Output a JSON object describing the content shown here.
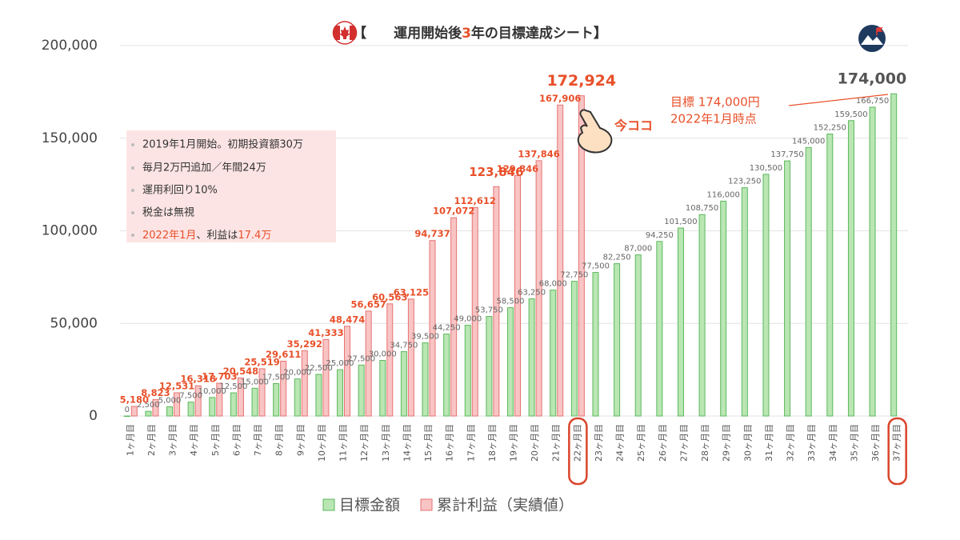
{
  "chart_data": {
    "type": "bar",
    "title": [
      "【",
      "運用開始後",
      "3",
      "年の目標達成シート】"
    ],
    "categories": [
      "1ヶ月目",
      "2ヶ月目",
      "3ヶ月目",
      "4ヶ月目",
      "5ヶ月目",
      "6ヶ月目",
      "7ヶ月目",
      "8ヶ月目",
      "9ヶ月目",
      "10ヶ月目",
      "11ヶ月目",
      "12ヶ月目",
      "13ヶ月目",
      "14ヶ月目",
      "15ヶ月目",
      "16ヶ月目",
      "17ヶ月目",
      "18ヶ月目",
      "19ヶ月目",
      "20ヶ月目",
      "21ヶ月目",
      "22ヶ月目",
      "23ヶ月目",
      "24ヶ月目",
      "25ヶ月目",
      "26ヶ月目",
      "27ヶ月目",
      "28ヶ月目",
      "29ヶ月目",
      "30ヶ月目",
      "31ヶ月目",
      "32ヶ月目",
      "33ヶ月目",
      "34ヶ月目",
      "35ヶ月目",
      "36ヶ月目",
      "37ヶ月目"
    ],
    "series": [
      {
        "name": "目標金額",
        "color": "#b9e6b3",
        "stroke": "#5cb85c",
        "values": [
          0,
          2500,
          5000,
          7500,
          10000,
          12500,
          15000,
          17500,
          20000,
          22500,
          25000,
          27500,
          30000,
          34750,
          39500,
          44250,
          49000,
          53750,
          58500,
          63250,
          68000,
          72750,
          77500,
          82250,
          87000,
          94250,
          101500,
          108750,
          116000,
          123250,
          130500,
          137750,
          145000,
          152250,
          159500,
          166750,
          174000
        ],
        "value_labels": [
          "0",
          "2,500",
          "5,000",
          "7,500",
          "10,000",
          "12,500",
          "15,000",
          "17,500",
          "20,000",
          "22,500",
          "25,000",
          "27,500",
          "30,000",
          "34,750",
          "39,500",
          "44,250",
          "49,000",
          "53,750",
          "58,500",
          "63,250",
          "68,000",
          "72,750",
          "77,500",
          "82,250",
          "87,000",
          "94,250",
          "101,500",
          "108,750",
          "116,000",
          "123,250",
          "130,500",
          "137,750",
          "145,000",
          "152,250",
          "159,500",
          "166,750",
          "174,000"
        ]
      },
      {
        "name": "累計利益（実績値）",
        "color": "#f9c4c4",
        "stroke": "#e57373",
        "values": [
          5180,
          8823,
          12531,
          16318,
          17703,
          20548,
          25519,
          29611,
          35292,
          41333,
          48474,
          56657,
          60563,
          63125,
          94737,
          107072,
          112612,
          123846,
          129846,
          137846,
          167906,
          172924,
          null,
          null,
          null,
          null,
          null,
          null,
          null,
          null,
          null,
          null,
          null,
          null,
          null,
          null,
          null
        ],
        "value_labels": [
          "5,180",
          "8,823",
          "12,531",
          "16,318",
          "17,703",
          "20,548",
          "25,519",
          "29,611",
          "35,292",
          "41,333",
          "48,474",
          "56,657",
          "60,563",
          "63,125",
          "94,737",
          "107,072",
          "112,612",
          "123,846",
          "129,846",
          "137,846",
          "167,906",
          "172,924",
          null,
          null,
          null,
          null,
          null,
          null,
          null,
          null,
          null,
          null,
          null,
          null,
          null,
          null,
          null
        ]
      }
    ],
    "ylim": [
      0,
      200000
    ],
    "yticks": [
      0,
      {
        "value": 50000,
        "label": "50,000"
      },
      {
        "value": 100000,
        "label": "100,000"
      },
      {
        "value": 150000,
        "label": "150,000"
      },
      {
        "value": 200000,
        "label": "200,000"
      }
    ],
    "grid": true,
    "legend": "bottom",
    "highlighted_categories": [
      21,
      36
    ],
    "notes": [
      "2019年1月開始。初期投資額30万",
      "毎月2万円追加／年間24万",
      "運用利回り10%",
      "税金は無視"
    ],
    "note_last": [
      "2022年1月",
      "、利益は",
      "17.4万"
    ],
    "annotations": {
      "here": "今ココ",
      "goal": "目標 174,000円",
      "goal_date": "2022年1月時点"
    }
  }
}
